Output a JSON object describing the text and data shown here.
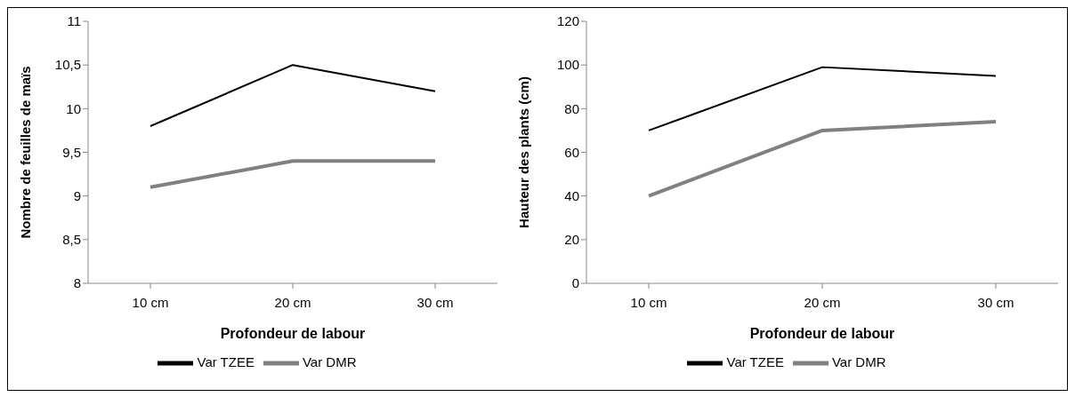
{
  "chart_data": [
    {
      "type": "line",
      "xlabel": "Profondeur de labour",
      "ylabel": "Nombre de feuilles de maïs",
      "categories": [
        "10 cm",
        "20 cm",
        "30 cm"
      ],
      "series": [
        {
          "name": "Var TZEE",
          "color": "#000000",
          "values": [
            9.8,
            10.5,
            10.2
          ]
        },
        {
          "name": "Var DMR",
          "color": "#808080",
          "values": [
            9.1,
            9.4,
            9.4
          ]
        }
      ],
      "ylim": [
        8,
        11
      ],
      "yticks": [
        8,
        {
          "value": 8.5,
          "label": "8,5"
        },
        9,
        {
          "value": 9.5,
          "label": "9,5"
        },
        10,
        {
          "value": 10.5,
          "label": "10,5"
        },
        11
      ],
      "grid": false,
      "legend": "bottom",
      "marker": "none",
      "line_style": "solid"
    },
    {
      "type": "line",
      "xlabel": "Profondeur de labour",
      "ylabel": "Hauteur des plants (cm)",
      "categories": [
        "10 cm",
        "20 cm",
        "30 cm"
      ],
      "series": [
        {
          "name": "Var TZEE",
          "color": "#000000",
          "values": [
            70,
            99,
            95
          ]
        },
        {
          "name": "Var DMR",
          "color": "#808080",
          "values": [
            40,
            70,
            74
          ]
        }
      ],
      "ylim": [
        0,
        120
      ],
      "yticks": [
        0,
        20,
        40,
        60,
        80,
        100,
        120
      ],
      "grid": false,
      "legend": "bottom",
      "marker": "none",
      "line_style": "solid"
    }
  ]
}
